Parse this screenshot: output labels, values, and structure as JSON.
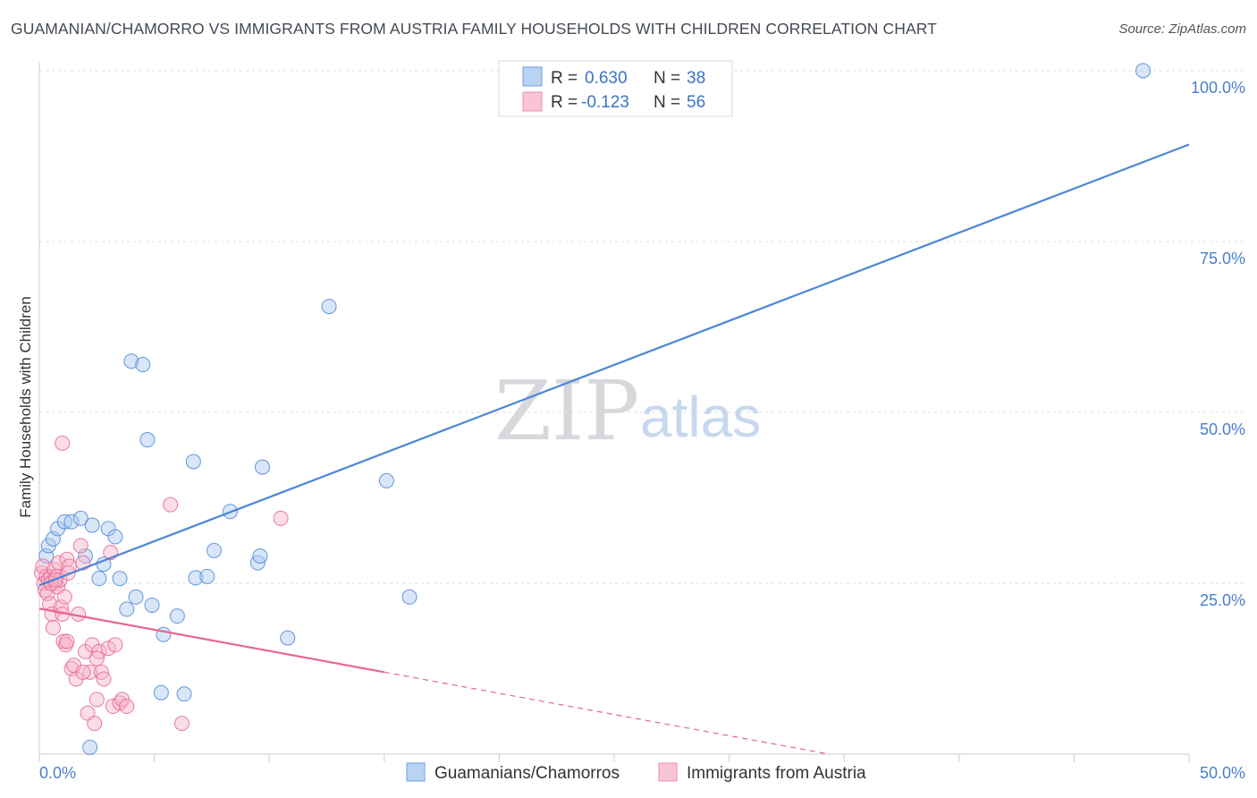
{
  "title": "GUAMANIAN/CHAMORRO VS IMMIGRANTS FROM AUSTRIA FAMILY HOUSEHOLDS WITH CHILDREN CORRELATION CHART",
  "source": "Source: ZipAtlas.com",
  "watermark": {
    "zip": "ZIP",
    "atlas": "atlas"
  },
  "colors": {
    "blue": "#4a86d6",
    "blue_fill": "#a9c8ef",
    "pink": "#e8658f",
    "pink_fill": "#f6b3c9",
    "grid": "#d8dce2",
    "tick_label": "#4a7fcb"
  },
  "legend": {
    "rows": [
      {
        "r_label": "R =",
        "r_value": "0.630",
        "n_label": "N =",
        "n_value": "38"
      },
      {
        "r_label": "R =",
        "r_value": "-0.123",
        "n_label": "N =",
        "n_value": "56"
      }
    ]
  },
  "bottom_legend": [
    "Guamanians/Chamorros",
    "Immigrants from Austria"
  ],
  "chart_data": {
    "type": "scatter",
    "xlabel": "",
    "ylabel": "Family Households with Children",
    "xlim": [
      0,
      50
    ],
    "ylim": [
      0,
      100
    ],
    "x_tick_labels": [
      "0.0%",
      "50.0%"
    ],
    "y_tick_labels": [
      "100.0%",
      "75.0%",
      "50.0%",
      "25.0%"
    ],
    "y_ticks": [
      100,
      75,
      50,
      25
    ],
    "grid": true,
    "series": [
      {
        "name": "Guamanians/Chamorros",
        "color": "#4a86d6",
        "R": 0.63,
        "N": 38,
        "trend": {
          "x0": 0,
          "y0": 24.7,
          "x1": 50,
          "y1": 89.2,
          "style": "solid"
        },
        "points": [
          [
            0.3,
            29.0
          ],
          [
            0.4,
            30.5
          ],
          [
            0.6,
            31.5
          ],
          [
            0.8,
            33.0
          ],
          [
            1.1,
            34.0
          ],
          [
            1.4,
            34.0
          ],
          [
            1.8,
            34.5
          ],
          [
            2.0,
            29.0
          ],
          [
            2.3,
            33.5
          ],
          [
            2.6,
            25.7
          ],
          [
            2.8,
            27.8
          ],
          [
            3.0,
            33.0
          ],
          [
            3.3,
            31.8
          ],
          [
            3.5,
            25.7
          ],
          [
            3.8,
            21.2
          ],
          [
            4.0,
            57.5
          ],
          [
            4.2,
            23.0
          ],
          [
            4.5,
            57.0
          ],
          [
            4.7,
            46.0
          ],
          [
            4.9,
            21.8
          ],
          [
            5.3,
            9.0
          ],
          [
            5.4,
            17.5
          ],
          [
            6.0,
            20.2
          ],
          [
            6.3,
            8.8
          ],
          [
            6.7,
            42.8
          ],
          [
            6.8,
            25.8
          ],
          [
            7.3,
            26.0
          ],
          [
            7.6,
            29.8
          ],
          [
            8.3,
            35.5
          ],
          [
            9.5,
            28.0
          ],
          [
            9.6,
            29.0
          ],
          [
            9.7,
            42.0
          ],
          [
            10.8,
            17.0
          ],
          [
            12.6,
            65.5
          ],
          [
            15.1,
            40.0
          ],
          [
            16.1,
            23.0
          ],
          [
            48.0,
            100.0
          ],
          [
            2.2,
            1.0
          ]
        ]
      },
      {
        "name": "Immigrants from Austria",
        "color": "#e8658f",
        "R": -0.123,
        "N": 56,
        "trend": {
          "x0": 0,
          "y0": 21.3,
          "x1": 15,
          "y1": 12.0,
          "style": "solid"
        },
        "trend_extension": {
          "x0": 15,
          "y0": 12.0,
          "x1": 50,
          "y1": -9.7,
          "style": "dashed"
        },
        "points": [
          [
            0.1,
            26.5
          ],
          [
            0.15,
            27.5
          ],
          [
            0.2,
            25.0
          ],
          [
            0.25,
            24.0
          ],
          [
            0.3,
            26.0
          ],
          [
            0.35,
            23.5
          ],
          [
            0.4,
            25.5
          ],
          [
            0.45,
            22.0
          ],
          [
            0.5,
            26.0
          ],
          [
            0.55,
            20.5
          ],
          [
            0.6,
            18.5
          ],
          [
            0.65,
            27.0
          ],
          [
            0.7,
            25.0
          ],
          [
            0.75,
            26.0
          ],
          [
            0.8,
            24.5
          ],
          [
            0.85,
            28.0
          ],
          [
            0.9,
            25.5
          ],
          [
            0.95,
            21.5
          ],
          [
            1.0,
            20.5
          ],
          [
            1.05,
            16.5
          ],
          [
            1.1,
            23.0
          ],
          [
            1.15,
            16.0
          ],
          [
            1.2,
            28.5
          ],
          [
            1.25,
            26.5
          ],
          [
            1.3,
            27.5
          ],
          [
            1.4,
            12.5
          ],
          [
            1.5,
            13.0
          ],
          [
            1.6,
            11.0
          ],
          [
            1.7,
            20.5
          ],
          [
            1.8,
            30.5
          ],
          [
            1.9,
            28.0
          ],
          [
            2.0,
            15.0
          ],
          [
            2.1,
            6.0
          ],
          [
            2.2,
            12.0
          ],
          [
            2.3,
            16.0
          ],
          [
            2.4,
            4.5
          ],
          [
            2.5,
            8.0
          ],
          [
            2.6,
            15.0
          ],
          [
            2.7,
            12.0
          ],
          [
            2.8,
            11.0
          ],
          [
            3.0,
            15.5
          ],
          [
            3.1,
            29.5
          ],
          [
            3.2,
            7.0
          ],
          [
            3.3,
            16.0
          ],
          [
            3.5,
            7.5
          ],
          [
            3.6,
            8.0
          ],
          [
            3.8,
            7.0
          ],
          [
            1.0,
            45.5
          ],
          [
            5.7,
            36.5
          ],
          [
            6.2,
            4.5
          ],
          [
            10.5,
            34.5
          ],
          [
            0.5,
            25.0
          ],
          [
            1.2,
            16.5
          ],
          [
            2.5,
            14.0
          ],
          [
            0.7,
            25.5
          ],
          [
            1.9,
            12.0
          ]
        ]
      }
    ]
  }
}
